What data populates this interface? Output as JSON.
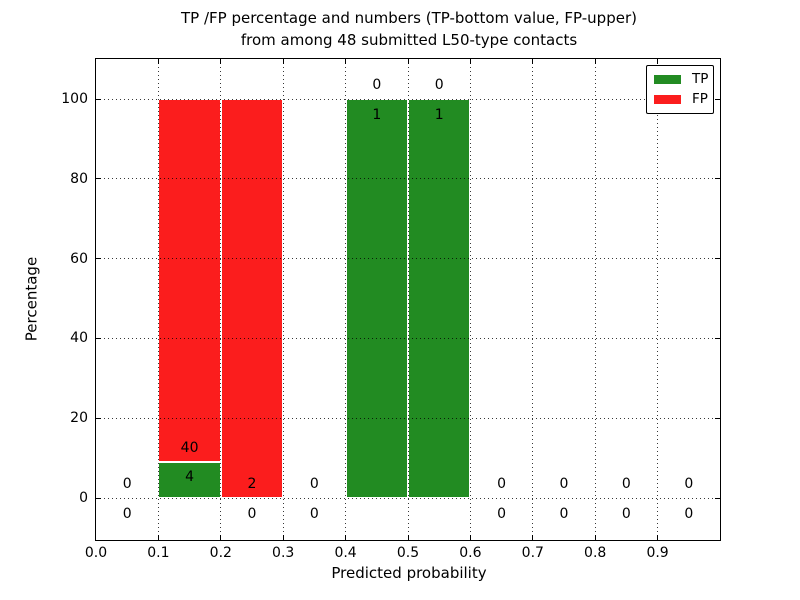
{
  "title": {
    "line1": "TP /FP percentage and numbers (TP-bottom value, FP-upper)",
    "line2": "from among 48 submitted L50-type contacts"
  },
  "axes": {
    "xlabel": "Predicted probability",
    "ylabel": "Percentage",
    "x_ticks": [
      {
        "value": 0.0,
        "label": "0.0"
      },
      {
        "value": 0.1,
        "label": "0.1"
      },
      {
        "value": 0.2,
        "label": "0.2"
      },
      {
        "value": 0.3,
        "label": "0.3"
      },
      {
        "value": 0.4,
        "label": "0.4"
      },
      {
        "value": 0.5,
        "label": "0.5"
      },
      {
        "value": 0.6,
        "label": "0.6"
      },
      {
        "value": 0.7,
        "label": "0.7"
      },
      {
        "value": 0.8,
        "label": "0.8"
      },
      {
        "value": 0.9,
        "label": "0.9"
      }
    ],
    "y_ticks": [
      {
        "value": 0,
        "label": "0"
      },
      {
        "value": 20,
        "label": "20"
      },
      {
        "value": 40,
        "label": "40"
      },
      {
        "value": 60,
        "label": "60"
      },
      {
        "value": 80,
        "label": "80"
      },
      {
        "value": 100,
        "label": "100"
      }
    ]
  },
  "legend": {
    "entries": [
      {
        "label": "TP",
        "color": "#228b22"
      },
      {
        "label": "FP",
        "color": "#fb1d1d"
      }
    ]
  },
  "chart_data": {
    "type": "bar",
    "variant": "stacked-percentage-histogram",
    "xlabel": "Predicted probability",
    "ylabel": "Percentage",
    "xlim": [
      0.0,
      1.0
    ],
    "ylim": [
      -10.5,
      110
    ],
    "grid": true,
    "legend_position": "upper right",
    "colors": {
      "tp": "#228b22",
      "fp": "#fb1d1d"
    },
    "bins": [
      {
        "x_start": 0.0,
        "x_end": 0.1,
        "tp_count": 0,
        "fp_count": 0,
        "tp_pct": 0,
        "fp_pct": 0
      },
      {
        "x_start": 0.1,
        "x_end": 0.2,
        "tp_count": 4,
        "fp_count": 40,
        "tp_pct": 9.09,
        "fp_pct": 90.91
      },
      {
        "x_start": 0.2,
        "x_end": 0.3,
        "tp_count": 0,
        "fp_count": 2,
        "tp_pct": 0,
        "fp_pct": 100
      },
      {
        "x_start": 0.3,
        "x_end": 0.4,
        "tp_count": 0,
        "fp_count": 0,
        "tp_pct": 0,
        "fp_pct": 0
      },
      {
        "x_start": 0.4,
        "x_end": 0.5,
        "tp_count": 1,
        "fp_count": 0,
        "tp_pct": 100,
        "fp_pct": 0
      },
      {
        "x_start": 0.5,
        "x_end": 0.6,
        "tp_count": 1,
        "fp_count": 0,
        "tp_pct": 100,
        "fp_pct": 0
      },
      {
        "x_start": 0.6,
        "x_end": 0.7,
        "tp_count": 0,
        "fp_count": 0,
        "tp_pct": 0,
        "fp_pct": 0
      },
      {
        "x_start": 0.7,
        "x_end": 0.8,
        "tp_count": 0,
        "fp_count": 0,
        "tp_pct": 0,
        "fp_pct": 0
      },
      {
        "x_start": 0.8,
        "x_end": 0.9,
        "tp_count": 0,
        "fp_count": 0,
        "tp_pct": 0,
        "fp_pct": 0
      },
      {
        "x_start": 0.9,
        "x_end": 1.0,
        "tp_count": 0,
        "fp_count": 0,
        "tp_pct": 0,
        "fp_pct": 0
      }
    ]
  }
}
